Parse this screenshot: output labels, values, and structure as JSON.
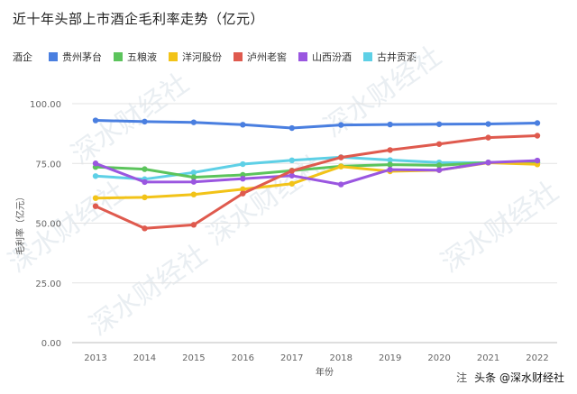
{
  "chart_data": {
    "type": "line",
    "title": "近十年头部上市酒企毛利率走势（亿元）",
    "legend_title": "酒企",
    "xlabel": "年份",
    "ylabel": "毛利率（亿元）",
    "categories": [
      "2013",
      "2014",
      "2015",
      "2016",
      "2017",
      "2018",
      "2019",
      "2020",
      "2021",
      "2022"
    ],
    "ylim": [
      0,
      100
    ],
    "yticks": [
      "0.00",
      "25.00",
      "50.00",
      "75.00",
      "100.00"
    ],
    "ytick_values": [
      0,
      25,
      50,
      75,
      100
    ],
    "grid": true,
    "legend_position": "top-left",
    "series": [
      {
        "name": "贵州茅台",
        "color": "#4A7FE0",
        "values": [
          93.0,
          92.5,
          92.2,
          91.2,
          89.8,
          91.1,
          91.3,
          91.4,
          91.5,
          91.9
        ]
      },
      {
        "name": "五粮液",
        "color": "#5CC45C",
        "values": [
          73.5,
          72.6,
          69.2,
          70.2,
          72.0,
          73.8,
          74.5,
          74.2,
          75.4,
          75.4
        ]
      },
      {
        "name": "洋河股份",
        "color": "#F2C318",
        "values": [
          60.5,
          60.8,
          62.0,
          64.2,
          66.5,
          73.7,
          71.7,
          72.2,
          75.3,
          74.6
        ]
      },
      {
        "name": "泸州老窖",
        "color": "#DF5A4E",
        "values": [
          57.1,
          47.8,
          49.3,
          62.4,
          71.9,
          77.5,
          80.6,
          83.1,
          85.8,
          86.6
        ]
      },
      {
        "name": "山西汾酒",
        "color": "#9A56E0",
        "values": [
          75.0,
          67.2,
          67.3,
          68.6,
          69.9,
          66.2,
          72.4,
          72.2,
          75.4,
          76.2
        ]
      },
      {
        "name": "古井贡酒",
        "color": "#5ED0E6",
        "values": [
          69.7,
          68.4,
          71.2,
          74.7,
          76.3,
          77.6,
          76.4,
          75.4,
          75.3,
          75.4
        ]
      }
    ]
  },
  "footer": {
    "note": "注",
    "brand": "头条 @深水财经社"
  },
  "watermark": "深水财经社"
}
